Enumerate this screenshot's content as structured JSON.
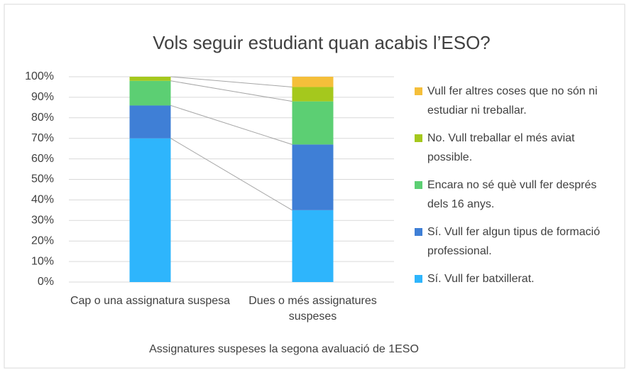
{
  "chart_data": {
    "type": "stacked_bar",
    "title": "Vols seguir estudiant quan acabis l’ESO?",
    "x_label": "Assignatures suspeses la segona avaluació de 1ESO",
    "categories": [
      "Cap o una assignatura suspesa",
      "Dues o més assignatures suspeses"
    ],
    "series": [
      {
        "name": "Sí. Vull fer batxillerat.",
        "color": "#2eb5fc",
        "values": [
          70,
          35
        ]
      },
      {
        "name": "Sí. Vull fer algun tipus de formació professional.",
        "color": "#3f7fd6",
        "values": [
          16,
          32
        ]
      },
      {
        "name": "Encara no sé què vull fer després dels 16 anys.",
        "color": "#5ccf73",
        "values": [
          12,
          21
        ]
      },
      {
        "name": "No. Vull treballar el més aviat possible.",
        "color": "#a5c81d",
        "values": [
          2,
          7
        ]
      },
      {
        "name": "Vull fer altres coses que no són ni estudiar ni treballar.",
        "color": "#f5bf3a",
        "values": [
          0,
          5
        ]
      }
    ],
    "ylim": [
      0,
      100
    ],
    "yticks": [
      {
        "value": 0,
        "label": "0%"
      },
      {
        "value": 10,
        "label": "10%"
      },
      {
        "value": 20,
        "label": "20%"
      },
      {
        "value": 30,
        "label": "30%"
      },
      {
        "value": 40,
        "label": "40%"
      },
      {
        "value": 50,
        "label": "50%"
      },
      {
        "value": 60,
        "label": "60%"
      },
      {
        "value": 70,
        "label": "70%"
      },
      {
        "value": 80,
        "label": "80%"
      },
      {
        "value": 90,
        "label": "90%"
      },
      {
        "value": 100,
        "label": "100%"
      }
    ],
    "grid": true,
    "legend": "right"
  }
}
